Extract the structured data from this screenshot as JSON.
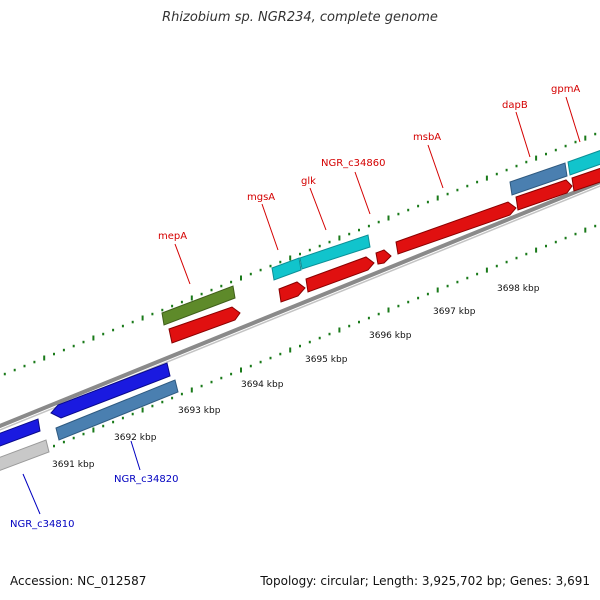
{
  "title": "Rhizobium sp. NGR234, complete genome",
  "footer": {
    "accession": "Accession: NC_012587",
    "summary": "Topology: circular; Length: 3,925,702 bp; Genes: 3,691"
  },
  "colors": {
    "label_red": "#d40000",
    "label_blue": "#0000c0",
    "backbone": "#8a8a8a",
    "tick": "#1a7a1a",
    "cds_red": "#e01010",
    "cds_cyan": "#11c4cc",
    "cds_olive": "#5e8a2a",
    "cds_steel": "#4a7fb0",
    "cds_blue": "#1a1ae0",
    "cds_gray": "#c8c8c8"
  },
  "scale_labels": [
    "3691 kbp",
    "3692 kbp",
    "3693 kbp",
    "3694 kbp",
    "3695 kbp",
    "3696 kbp",
    "3697 kbp",
    "3698 kbp"
  ],
  "gene_labels": [
    {
      "name": "mepA",
      "color": "red"
    },
    {
      "name": "mgsA",
      "color": "red"
    },
    {
      "name": "glk",
      "color": "red"
    },
    {
      "name": "NGR_c34860",
      "color": "red"
    },
    {
      "name": "msbA",
      "color": "red"
    },
    {
      "name": "dapB",
      "color": "red"
    },
    {
      "name": "gpmA",
      "color": "red"
    },
    {
      "name": "NGR_c34820",
      "color": "blue"
    },
    {
      "name": "NGR_c34810",
      "color": "blue"
    }
  ]
}
